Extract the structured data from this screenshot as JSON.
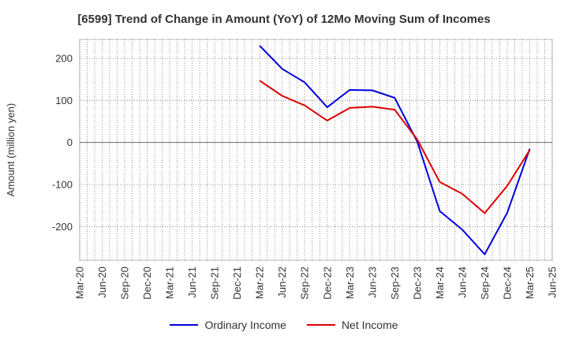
{
  "chart_data": {
    "type": "line",
    "title": "[6599]  Trend of Change in Amount (YoY) of 12Mo Moving Sum of Incomes",
    "xlabel": "",
    "ylabel": "Amount (million yen)",
    "ylim": [
      -280,
      245
    ],
    "yticks": [
      200,
      100,
      0,
      -100,
      -200
    ],
    "x_tick_labels": [
      "Mar-20",
      "Jun-20",
      "Sep-20",
      "Dec-20",
      "Mar-21",
      "Jun-21",
      "Sep-21",
      "Dec-21",
      "Mar-22",
      "Jun-22",
      "Sep-22",
      "Dec-22",
      "Mar-23",
      "Jun-23",
      "Sep-23",
      "Dec-23",
      "Mar-24",
      "Jun-24",
      "Sep-24",
      "Dec-24",
      "Mar-25",
      "Jun-25"
    ],
    "x": [
      "Mar-22",
      "Jun-22",
      "Sep-22",
      "Dec-22",
      "Mar-23",
      "Jun-23",
      "Sep-23",
      "Dec-23",
      "Mar-24",
      "Jun-24",
      "Sep-24",
      "Dec-24",
      "Mar-25"
    ],
    "grid": true,
    "legend_position": "bottom",
    "series": [
      {
        "name": "Ordinary Income",
        "color": "#0000dd",
        "values": [
          230,
          175,
          143,
          84,
          125,
          124,
          106,
          2,
          -163,
          -207,
          -266,
          -167,
          -15
        ]
      },
      {
        "name": "Net Income",
        "color": "#dd0000",
        "values": [
          147,
          111,
          88,
          52,
          82,
          85,
          78,
          7,
          -94,
          -122,
          -168,
          -103,
          -18
        ]
      }
    ]
  }
}
